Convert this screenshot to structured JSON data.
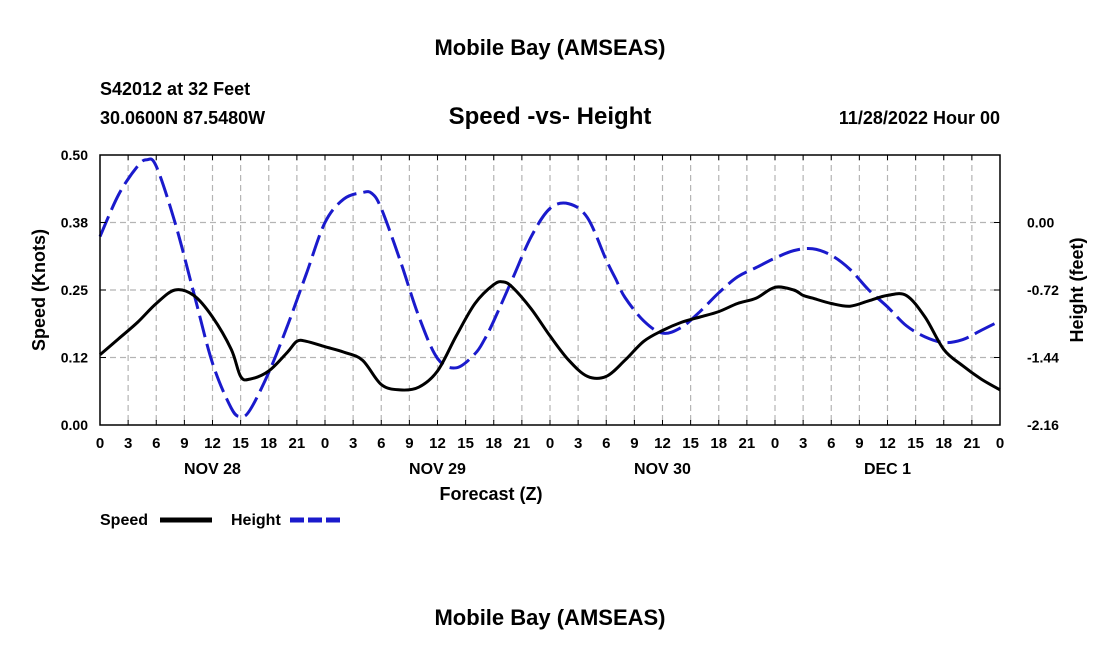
{
  "header": {
    "title": "Mobile Bay (AMSEAS)",
    "station": "S42012 at 32 Feet",
    "coords": "30.0600N  87.5480W",
    "subtitle": "Speed -vs- Height",
    "datetime": "11/28/2022 Hour 00"
  },
  "footer": {
    "title": "Mobile Bay (AMSEAS)"
  },
  "chart_data": {
    "type": "line",
    "xlabel": "Forecast (Z)",
    "ylabel_left": "Speed (Knots)",
    "ylabel_right": "Height (feet)",
    "x_range_hours": [
      0,
      96
    ],
    "x_tick_step_hours": 3,
    "x_tick_labels": [
      "0",
      "3",
      "6",
      "9",
      "12",
      "15",
      "18",
      "21",
      "0",
      "3",
      "6",
      "9",
      "12",
      "15",
      "18",
      "21",
      "0",
      "3",
      "6",
      "9",
      "12",
      "15",
      "18",
      "21",
      "0",
      "3",
      "6",
      "9",
      "12",
      "15",
      "18",
      "21",
      "0"
    ],
    "day_labels": [
      {
        "label": "NOV 28",
        "hour": 12
      },
      {
        "label": "NOV 29",
        "hour": 36
      },
      {
        "label": "NOV 30",
        "hour": 60
      },
      {
        "label": "DEC 1",
        "hour": 84
      }
    ],
    "y_left": {
      "min": 0.0,
      "max": 0.5,
      "ticks": [
        "0.00",
        "0.12",
        "0.25",
        "0.38",
        "0.50"
      ]
    },
    "y_right": {
      "min": -2.16,
      "max": 0.72,
      "ticks": [
        "-2.16",
        "-1.44",
        "-0.72",
        "0.00"
      ]
    },
    "grid": true,
    "series": [
      {
        "name": "Speed",
        "axis": "left",
        "color": "#000000",
        "style": "solid",
        "x": [
          0,
          2,
          4,
          6,
          8,
          10,
          12,
          14,
          15,
          16,
          18,
          20,
          21,
          22,
          24,
          26,
          28,
          30,
          32,
          34,
          36,
          38,
          40,
          42,
          43,
          44,
          46,
          48,
          50,
          52,
          54,
          56,
          58,
          60,
          62,
          64,
          66,
          68,
          70,
          72,
          74,
          75,
          76,
          78,
          80,
          82,
          84,
          86,
          88,
          90,
          92,
          94,
          96
        ],
        "values": [
          0.13,
          0.16,
          0.19,
          0.225,
          0.25,
          0.24,
          0.2,
          0.14,
          0.09,
          0.085,
          0.1,
          0.135,
          0.155,
          0.155,
          0.145,
          0.135,
          0.12,
          0.075,
          0.065,
          0.07,
          0.1,
          0.165,
          0.225,
          0.26,
          0.265,
          0.255,
          0.215,
          0.165,
          0.12,
          0.09,
          0.09,
          0.12,
          0.155,
          0.175,
          0.19,
          0.2,
          0.21,
          0.225,
          0.235,
          0.255,
          0.25,
          0.24,
          0.235,
          0.225,
          0.22,
          0.23,
          0.24,
          0.24,
          0.2,
          0.14,
          0.11,
          0.085,
          0.065
        ]
      },
      {
        "name": "Height",
        "axis": "right",
        "color": "#1a1acc",
        "style": "dashed",
        "x": [
          0,
          2,
          4,
          5,
          6,
          8,
          10,
          12,
          14,
          15,
          16,
          18,
          20,
          22,
          24,
          26,
          28,
          29,
          30,
          32,
          34,
          36,
          38,
          40,
          41,
          42,
          44,
          46,
          48,
          50,
          52,
          54,
          55,
          56,
          58,
          60,
          62,
          64,
          66,
          68,
          70,
          72,
          74,
          76,
          78,
          80,
          82,
          84,
          86,
          88,
          90,
          92,
          94,
          96
        ],
        "values": [
          -0.15,
          0.3,
          0.6,
          0.67,
          0.6,
          0.0,
          -0.75,
          -1.5,
          -1.98,
          -2.07,
          -2.0,
          -1.6,
          -1.1,
          -0.55,
          0.0,
          0.25,
          0.32,
          0.31,
          0.15,
          -0.4,
          -1.0,
          -1.45,
          -1.55,
          -1.4,
          -1.25,
          -1.05,
          -0.6,
          -0.15,
          0.15,
          0.2,
          0.05,
          -0.4,
          -0.6,
          -0.8,
          -1.05,
          -1.18,
          -1.12,
          -0.95,
          -0.75,
          -0.58,
          -0.48,
          -0.38,
          -0.3,
          -0.28,
          -0.35,
          -0.5,
          -0.72,
          -0.9,
          -1.1,
          -1.22,
          -1.28,
          -1.25,
          -1.15,
          -1.05
        ]
      }
    ],
    "legend": [
      {
        "label": "Speed",
        "color": "#000000",
        "style": "solid"
      },
      {
        "label": "Height",
        "color": "#1a1acc",
        "style": "dashed"
      }
    ]
  }
}
